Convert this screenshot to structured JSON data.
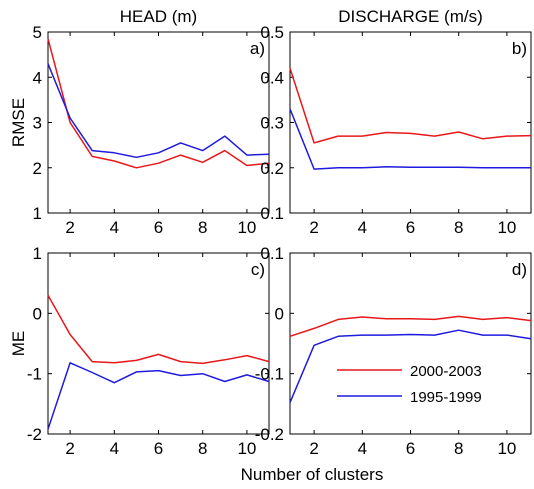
{
  "colors": {
    "red": "#e8171a",
    "blue": "#1f1adf"
  },
  "figure": {
    "xlabel_shared": "Number of clusters"
  },
  "chart_data": [
    {
      "type": "line",
      "panel_label": "a)",
      "column_title": "HEAD (m)",
      "ylabel": "RMSE",
      "xlim": [
        1,
        11
      ],
      "ylim": [
        1,
        5
      ],
      "xticks": [
        2,
        4,
        6,
        8,
        10
      ],
      "yticks": [
        1,
        2,
        3,
        4,
        5
      ],
      "x": [
        1,
        2,
        3,
        4,
        5,
        6,
        7,
        8,
        9,
        10,
        11
      ],
      "series": [
        {
          "color": "#e8171a",
          "values": [
            4.85,
            3.0,
            2.25,
            2.15,
            2.0,
            2.1,
            2.28,
            2.12,
            2.38,
            2.05,
            2.1
          ]
        },
        {
          "color": "#1f1adf",
          "values": [
            4.3,
            3.1,
            2.38,
            2.33,
            2.23,
            2.33,
            2.55,
            2.38,
            2.7,
            2.28,
            2.3
          ]
        }
      ]
    },
    {
      "type": "line",
      "panel_label": "b)",
      "column_title": "DISCHARGE (m/s)",
      "xlim": [
        1,
        11
      ],
      "ylim": [
        0.1,
        0.5
      ],
      "xticks": [
        2,
        4,
        6,
        8,
        10
      ],
      "yticks": [
        0.1,
        0.2,
        0.3,
        0.4,
        0.5
      ],
      "x": [
        1,
        2,
        3,
        4,
        5,
        6,
        7,
        8,
        9,
        10,
        11
      ],
      "series": [
        {
          "color": "#e8171a",
          "values": [
            0.42,
            0.255,
            0.27,
            0.27,
            0.278,
            0.276,
            0.27,
            0.279,
            0.264,
            0.27,
            0.271
          ]
        },
        {
          "color": "#1f1adf",
          "values": [
            0.33,
            0.197,
            0.2,
            0.2,
            0.202,
            0.201,
            0.201,
            0.201,
            0.2,
            0.2,
            0.2
          ]
        }
      ]
    },
    {
      "type": "line",
      "panel_label": "c)",
      "ylabel": "ME",
      "xlim": [
        1,
        11
      ],
      "ylim": [
        -2,
        1
      ],
      "xticks": [
        2,
        4,
        6,
        8,
        10
      ],
      "yticks": [
        -2,
        -1,
        0,
        1
      ],
      "x": [
        1,
        2,
        3,
        4,
        5,
        6,
        7,
        8,
        9,
        10,
        11
      ],
      "series": [
        {
          "color": "#e8171a",
          "values": [
            0.3,
            -0.35,
            -0.8,
            -0.82,
            -0.78,
            -0.68,
            -0.8,
            -0.83,
            -0.77,
            -0.7,
            -0.8
          ]
        },
        {
          "color": "#1f1adf",
          "values": [
            -1.92,
            -0.82,
            -0.98,
            -1.15,
            -0.97,
            -0.95,
            -1.03,
            -1.0,
            -1.13,
            -1.02,
            -1.13
          ]
        }
      ]
    },
    {
      "type": "line",
      "panel_label": "d)",
      "xlim": [
        1,
        11
      ],
      "ylim": [
        -0.2,
        0.1
      ],
      "xticks": [
        2,
        4,
        6,
        8,
        10
      ],
      "yticks": [
        -0.2,
        -0.1,
        0,
        0.1
      ],
      "legend": {
        "position": "lower-right",
        "entries": [
          "2000-2003",
          "1995-1999"
        ]
      },
      "x": [
        1,
        2,
        3,
        4,
        5,
        6,
        7,
        8,
        9,
        10,
        11
      ],
      "series": [
        {
          "name": "2000-2003",
          "color": "#e8171a",
          "values": [
            -0.038,
            -0.025,
            -0.01,
            -0.006,
            -0.009,
            -0.009,
            -0.01,
            -0.005,
            -0.01,
            -0.007,
            -0.012
          ]
        },
        {
          "name": "1995-1999",
          "color": "#1f1adf",
          "values": [
            -0.148,
            -0.053,
            -0.038,
            -0.036,
            -0.036,
            -0.035,
            -0.036,
            -0.028,
            -0.036,
            -0.036,
            -0.042
          ]
        }
      ]
    }
  ]
}
